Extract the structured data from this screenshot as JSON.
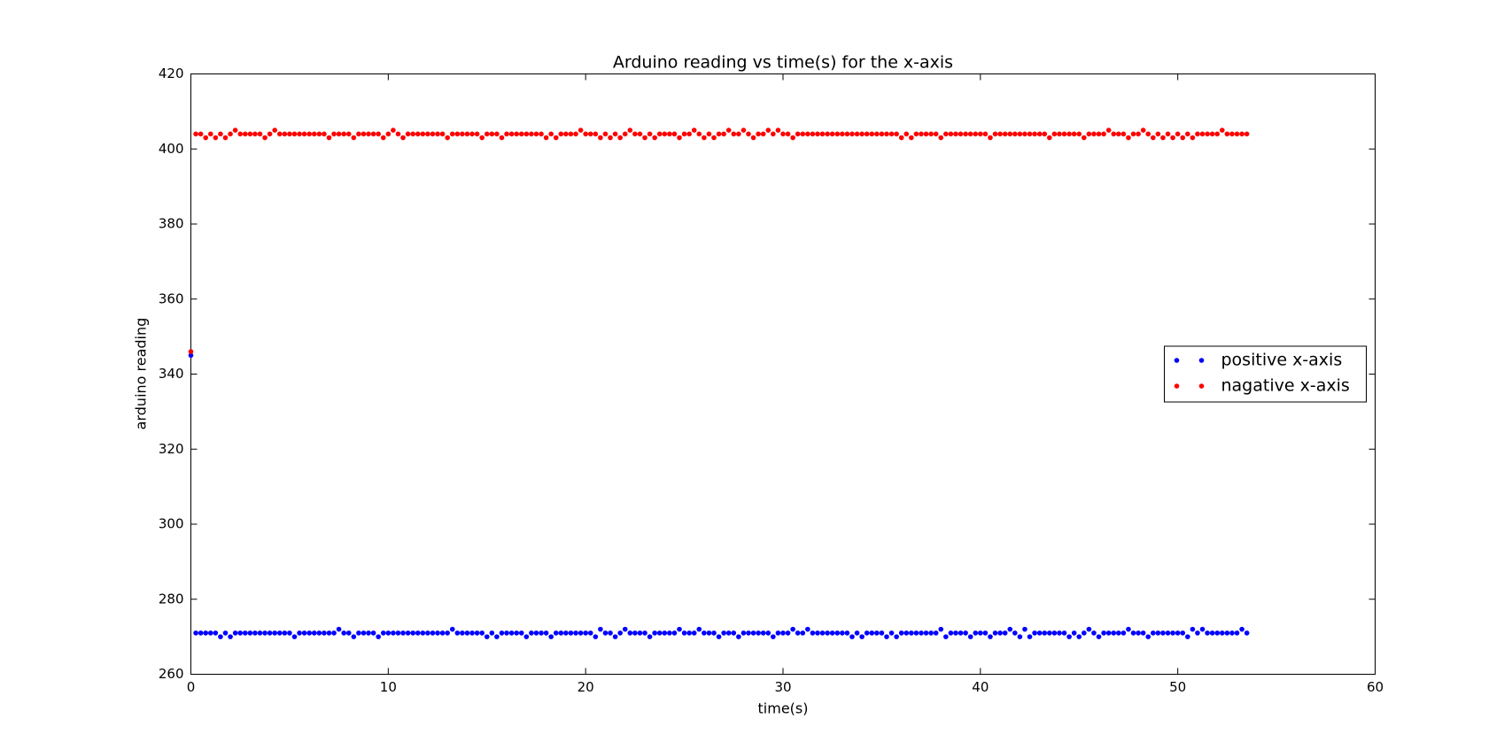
{
  "chart_data": {
    "type": "scatter",
    "title": "Arduino reading vs time(s) for the x-axis",
    "xlabel": "time(s)",
    "ylabel": "arduino reading",
    "xlim": [
      0,
      60
    ],
    "ylim": [
      260,
      420
    ],
    "xticks": [
      0,
      10,
      20,
      30,
      40,
      50,
      60
    ],
    "yticks": [
      260,
      280,
      300,
      320,
      340,
      360,
      380,
      400,
      420
    ],
    "grid": false,
    "legend": "center right",
    "x": [
      0,
      0.25,
      0.5,
      0.75,
      1,
      1.25,
      1.5,
      1.75,
      2,
      2.25,
      2.5,
      2.75,
      3,
      3.25,
      3.5,
      3.75,
      4,
      4.25,
      4.5,
      4.75,
      5,
      5.25,
      5.5,
      5.75,
      6,
      6.25,
      6.5,
      6.75,
      7,
      7.25,
      7.5,
      7.75,
      8,
      8.25,
      8.5,
      8.75,
      9,
      9.25,
      9.5,
      9.75,
      10,
      10.25,
      10.5,
      10.75,
      11,
      11.25,
      11.5,
      11.75,
      12,
      12.25,
      12.5,
      12.75,
      13,
      13.25,
      13.5,
      13.75,
      14,
      14.25,
      14.5,
      14.75,
      15,
      15.25,
      15.5,
      15.75,
      16,
      16.25,
      16.5,
      16.75,
      17,
      17.25,
      17.5,
      17.75,
      18,
      18.25,
      18.5,
      18.75,
      19,
      19.25,
      19.5,
      19.75,
      20,
      20.25,
      20.5,
      20.75,
      21,
      21.25,
      21.5,
      21.75,
      22,
      22.25,
      22.5,
      22.75,
      23,
      23.25,
      23.5,
      23.75,
      24,
      24.25,
      24.5,
      24.75,
      25,
      25.25,
      25.5,
      25.75,
      26,
      26.25,
      26.5,
      26.75,
      27,
      27.25,
      27.5,
      27.75,
      28,
      28.25,
      28.5,
      28.75,
      29,
      29.25,
      29.5,
      29.75,
      30,
      30.25,
      30.5,
      30.75,
      31,
      31.25,
      31.5,
      31.75,
      32,
      32.25,
      32.5,
      32.75,
      33,
      33.25,
      33.5,
      33.75,
      34,
      34.25,
      34.5,
      34.75,
      35,
      35.25,
      35.5,
      35.75,
      36,
      36.25,
      36.5,
      36.75,
      37,
      37.25,
      37.5,
      37.75,
      38,
      38.25,
      38.5,
      38.75,
      39,
      39.25,
      39.5,
      39.75,
      40,
      40.25,
      40.5,
      40.75,
      41,
      41.25,
      41.5,
      41.75,
      42,
      42.25,
      42.5,
      42.75,
      43,
      43.25,
      43.5,
      43.75,
      44,
      44.25,
      44.5,
      44.75,
      45,
      45.25,
      45.5,
      45.75,
      46,
      46.25,
      46.5,
      46.75,
      47,
      47.25,
      47.5,
      47.75,
      48,
      48.25,
      48.5,
      48.75,
      49,
      49.25,
      49.5,
      49.75,
      50,
      50.25,
      50.5,
      50.75,
      51,
      51.25,
      51.5,
      51.75,
      52,
      52.25,
      52.5,
      52.75,
      53,
      53.25,
      53.5
    ],
    "series": [
      {
        "name": "positive x-axis",
        "color": "#0000ff",
        "values": [
          345,
          271,
          271,
          271,
          271,
          271,
          270,
          271,
          270,
          271,
          271,
          271,
          271,
          271,
          271,
          271,
          271,
          271,
          271,
          271,
          271,
          270,
          271,
          271,
          271,
          271,
          271,
          271,
          271,
          271,
          272,
          271,
          271,
          270,
          271,
          271,
          271,
          271,
          270,
          271,
          271,
          271,
          271,
          271,
          271,
          271,
          271,
          271,
          271,
          271,
          271,
          271,
          271,
          272,
          271,
          271,
          271,
          271,
          271,
          271,
          270,
          271,
          270,
          271,
          271,
          271,
          271,
          271,
          270,
          271,
          271,
          271,
          271,
          270,
          271,
          271,
          271,
          271,
          271,
          271,
          271,
          271,
          270,
          272,
          271,
          271,
          270,
          271,
          272,
          271,
          271,
          271,
          271,
          270,
          271,
          271,
          271,
          271,
          271,
          272,
          271,
          271,
          271,
          272,
          271,
          271,
          271,
          270,
          271,
          271,
          271,
          270,
          271,
          271,
          271,
          271,
          271,
          271,
          270,
          271,
          271,
          271,
          272,
          271,
          271,
          272,
          271,
          271,
          271,
          271,
          271,
          271,
          271,
          271,
          270,
          271,
          270,
          271,
          271,
          271,
          271,
          270,
          271,
          270,
          271,
          271,
          271,
          271,
          271,
          271,
          271,
          271,
          272,
          270,
          271,
          271,
          271,
          271,
          270,
          271,
          271,
          271,
          270,
          271,
          271,
          271,
          272,
          271,
          270,
          272,
          270,
          271,
          271,
          271,
          271,
          271,
          271,
          271,
          270,
          271,
          270,
          271,
          272,
          271,
          270,
          271,
          271,
          271,
          271,
          271,
          272,
          271,
          271,
          271,
          270,
          271,
          271,
          271,
          271,
          271,
          271,
          271,
          270,
          272,
          271,
          272,
          271,
          271,
          271,
          271,
          271,
          271,
          271,
          272,
          271
        ]
      },
      {
        "name": "nagative x-axis",
        "color": "#ff0000",
        "values": [
          346,
          404,
          404,
          403,
          404,
          403,
          404,
          403,
          404,
          405,
          404,
          404,
          404,
          404,
          404,
          403,
          404,
          405,
          404,
          404,
          404,
          404,
          404,
          404,
          404,
          404,
          404,
          404,
          403,
          404,
          404,
          404,
          404,
          403,
          404,
          404,
          404,
          404,
          404,
          403,
          404,
          405,
          404,
          403,
          404,
          404,
          404,
          404,
          404,
          404,
          404,
          404,
          403,
          404,
          404,
          404,
          404,
          404,
          404,
          403,
          404,
          404,
          404,
          403,
          404,
          404,
          404,
          404,
          404,
          404,
          404,
          404,
          403,
          404,
          403,
          404,
          404,
          404,
          404,
          405,
          404,
          404,
          404,
          403,
          404,
          403,
          404,
          403,
          404,
          405,
          404,
          404,
          403,
          404,
          403,
          404,
          404,
          404,
          404,
          403,
          404,
          404,
          405,
          404,
          403,
          404,
          403,
          404,
          404,
          405,
          404,
          404,
          405,
          404,
          403,
          404,
          404,
          405,
          404,
          405,
          404,
          404,
          403,
          404,
          404,
          404,
          404,
          404,
          404,
          404,
          404,
          404,
          404,
          404,
          404,
          404,
          404,
          404,
          404,
          404,
          404,
          404,
          404,
          404,
          403,
          404,
          403,
          404,
          404,
          404,
          404,
          404,
          403,
          404,
          404,
          404,
          404,
          404,
          404,
          404,
          404,
          404,
          403,
          404,
          404,
          404,
          404,
          404,
          404,
          404,
          404,
          404,
          404,
          404,
          403,
          404,
          404,
          404,
          404,
          404,
          404,
          403,
          404,
          404,
          404,
          404,
          405,
          404,
          404,
          404,
          403,
          404,
          404,
          405,
          404,
          403,
          404,
          403,
          404,
          403,
          404,
          403,
          404,
          403,
          404,
          404,
          404,
          404,
          404,
          405,
          404,
          404,
          404,
          404,
          404
        ]
      }
    ]
  }
}
